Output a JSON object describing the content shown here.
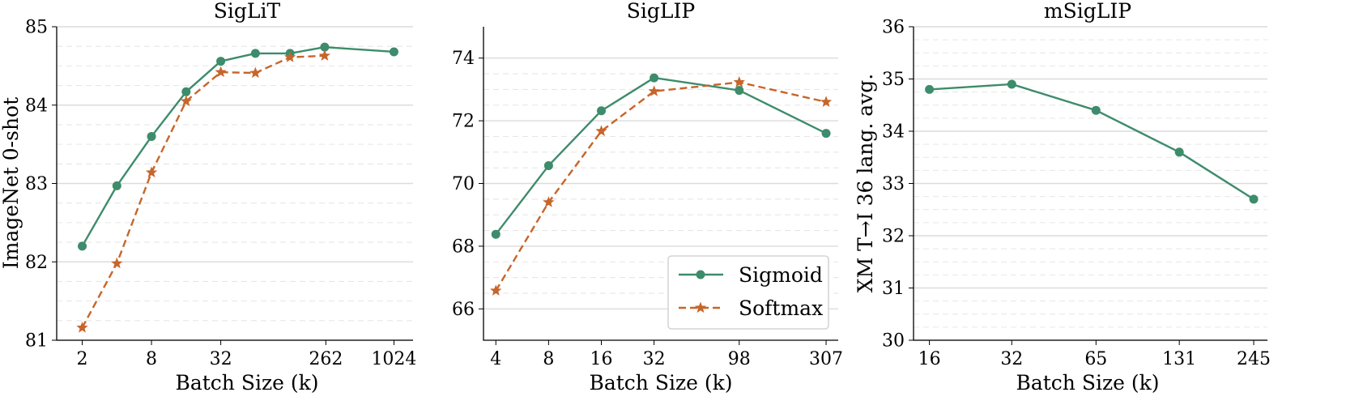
{
  "colors": {
    "sigmoid": "#3d8c6b",
    "softmax": "#c7652a"
  },
  "legend": {
    "sigmoid_label": "Sigmoid",
    "softmax_label": "Softmax"
  },
  "chart_data": [
    {
      "type": "line",
      "title": "SigLiT",
      "xlabel": "Batch Size (k)",
      "ylabel": "ImageNet 0-shot",
      "x_scale": "log2",
      "xlim": [
        1.2,
        1500
      ],
      "ylim": [
        81,
        85
      ],
      "x_ticks": [
        2,
        8,
        32,
        262,
        1024
      ],
      "x_tick_labels": [
        "2",
        "8",
        "32",
        "262",
        "1024"
      ],
      "y_ticks": [
        81,
        82,
        83,
        84,
        85
      ],
      "y_tick_labels": [
        "81",
        "82",
        "83",
        "84",
        "85"
      ],
      "y_minor": [
        81.25,
        81.5,
        81.75,
        82.25,
        82.5,
        82.75,
        83.25,
        83.5,
        83.75,
        84.25,
        84.5,
        84.75
      ],
      "series": [
        {
          "name": "Sigmoid",
          "x": [
            2,
            4,
            8,
            16,
            32,
            64,
            128,
            256,
            1024
          ],
          "y": [
            82.2,
            82.97,
            83.6,
            84.17,
            84.56,
            84.66,
            84.66,
            84.74,
            84.68
          ]
        },
        {
          "name": "Softmax",
          "x": [
            2,
            4,
            8,
            16,
            32,
            64,
            128,
            256
          ],
          "y": [
            81.16,
            81.98,
            83.14,
            84.05,
            84.42,
            84.41,
            84.61,
            84.63
          ]
        }
      ]
    },
    {
      "type": "line",
      "title": "SigLIP",
      "xlabel": "Batch Size (k)",
      "ylabel": "",
      "x_scale": "log2",
      "xlim": [
        3.4,
        360
      ],
      "ylim": [
        65,
        75
      ],
      "x_ticks": [
        4,
        8,
        16,
        32,
        98,
        307
      ],
      "x_tick_labels": [
        "4",
        "8",
        "16",
        "32",
        "98",
        "307"
      ],
      "y_ticks": [
        66,
        68,
        70,
        72,
        74
      ],
      "y_tick_labels": [
        "66",
        "68",
        "70",
        "72",
        "74"
      ],
      "y_minor": [
        66.5,
        67,
        67.5,
        68.5,
        69,
        69.5,
        70.5,
        71,
        71.5,
        72.5,
        73,
        73.5
      ],
      "legend_position": "lower-right",
      "series": [
        {
          "name": "Sigmoid",
          "x": [
            4,
            8,
            16,
            32,
            98,
            307
          ],
          "y": [
            68.38,
            70.57,
            72.32,
            73.37,
            72.97,
            71.6
          ]
        },
        {
          "name": "Softmax",
          "x": [
            4,
            8,
            16,
            32,
            98,
            307
          ],
          "y": [
            66.58,
            69.4,
            71.67,
            72.94,
            73.23,
            72.6
          ]
        }
      ]
    },
    {
      "type": "line",
      "title": "mSigLIP",
      "xlabel": "Batch Size (k)",
      "ylabel": "XM T→I 36 lang. avg.",
      "x_scale": "log2",
      "xlim": [
        14,
        275
      ],
      "ylim": [
        30,
        36
      ],
      "x_ticks": [
        16,
        32,
        65,
        131,
        245
      ],
      "x_tick_labels": [
        "16",
        "32",
        "65",
        "131",
        "245"
      ],
      "y_ticks": [
        30,
        31,
        32,
        33,
        34,
        35,
        36
      ],
      "y_tick_labels": [
        "30",
        "31",
        "32",
        "33",
        "34",
        "35",
        "36"
      ],
      "y_minor": [
        30.25,
        30.5,
        30.75,
        31.25,
        31.5,
        31.75,
        32.25,
        32.5,
        32.75,
        33.25,
        33.5,
        33.75,
        34.25,
        34.5,
        34.75,
        35.25,
        35.5,
        35.75
      ],
      "series": [
        {
          "name": "Sigmoid",
          "x": [
            16,
            32,
            65,
            131,
            245
          ],
          "y": [
            34.8,
            34.9,
            34.4,
            33.6,
            32.7
          ]
        }
      ]
    }
  ]
}
